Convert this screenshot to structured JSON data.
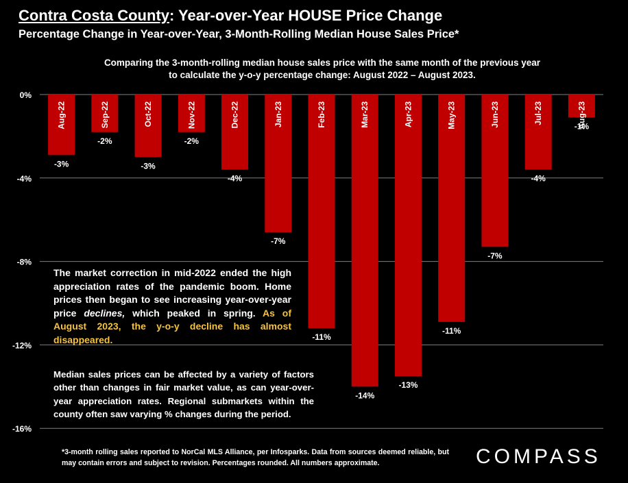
{
  "header": {
    "title_county": "Contra Costa County",
    "title_rest": ": Year-over-Year HOUSE Price Change",
    "subtitle": "Percentage Change in Year-over-Year, 3-Month-Rolling Median House Sales Price*",
    "description": "Comparing the 3-month-rolling median house sales price with the same month of the previous year to calculate the y-o-y percentage change: August 2022 – August 2023."
  },
  "notes": {
    "main_text": "The market correction in mid-2022 ended the high appreciation rates of the pandemic boom. Home prices then began to see increasing year-over-year price ",
    "main_emph": "declines,",
    "main_text2": " which peaked in spring.",
    "highlight": "As of August 2023, the y-o-y decline has almost disappeared.",
    "secondary": "Median sales prices can be affected by a variety of factors other than changes in fair market value, as can year-over-year appreciation rates. Regional submarkets within the county often saw varying % changes during the period."
  },
  "footnote": "*3-month rolling sales reported to NorCal MLS Alliance, per Infosparks. Data from sources deemed reliable, but may contain errors and subject to revision. Percentages rounded. All numbers approximate.",
  "logo": "COMPASS",
  "colors": {
    "bar": "#c00000",
    "background": "#000000",
    "highlight": "#f5c242",
    "text": "#ffffff"
  },
  "chart_data": {
    "type": "bar",
    "categories": [
      "Aug-22",
      "Sep-22",
      "Oct-22",
      "Nov-22",
      "Dec-22",
      "Jan-23",
      "Feb-23",
      "Mar-23",
      "Apr-23",
      "May-23",
      "Jun-23",
      "Jul-23",
      "Aug-23"
    ],
    "values": [
      -2.9,
      -1.8,
      -3.0,
      -1.8,
      -3.6,
      -6.6,
      -11.2,
      -14.0,
      -13.5,
      -10.9,
      -7.3,
      -3.6,
      -1.1
    ],
    "data_labels": [
      "-3%",
      "-2%",
      "-3%",
      "-2%",
      "-4%",
      "-7%",
      "-11%",
      "-14%",
      "-13%",
      "-11%",
      "-7%",
      "-4%",
      "-1%"
    ],
    "y_ticks": [
      0,
      -4,
      -8,
      -12,
      -16
    ],
    "y_tick_labels": [
      "0%",
      "-4%",
      "-8%",
      "-12%",
      "-16%"
    ],
    "ylim": [
      -16,
      0
    ],
    "grid": true,
    "legend": "none"
  }
}
